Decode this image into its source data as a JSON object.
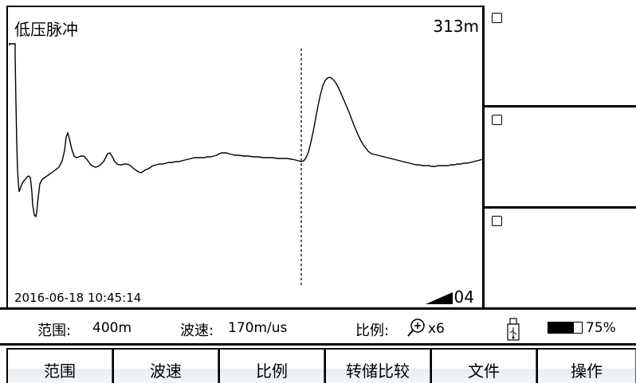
{
  "screen": {
    "mode_title": "低压脉冲",
    "cursor_distance": "313m",
    "timestamp": "2016-06-18 10:45:14",
    "gain_level": "04"
  },
  "side_panels": [
    {
      "checked": false
    },
    {
      "checked": false
    },
    {
      "checked": false
    }
  ],
  "status": {
    "range_label": "范围:",
    "range_value": "400m",
    "speed_label": "波速:",
    "speed_value": "170m/us",
    "scale_label": "比例:",
    "scale_value": "x6",
    "battery_percent": "75%",
    "battery_level": 0.75
  },
  "softkeys": [
    {
      "label": "范围"
    },
    {
      "label": "波速"
    },
    {
      "label": "比例"
    },
    {
      "label": "转储比较"
    },
    {
      "label": "文件"
    },
    {
      "label": "操作"
    }
  ],
  "icons": {
    "zoom": "zoom-in-icon",
    "usb": "usb-icon",
    "battery": "battery-icon",
    "gain": "gain-wedge-icon"
  }
}
